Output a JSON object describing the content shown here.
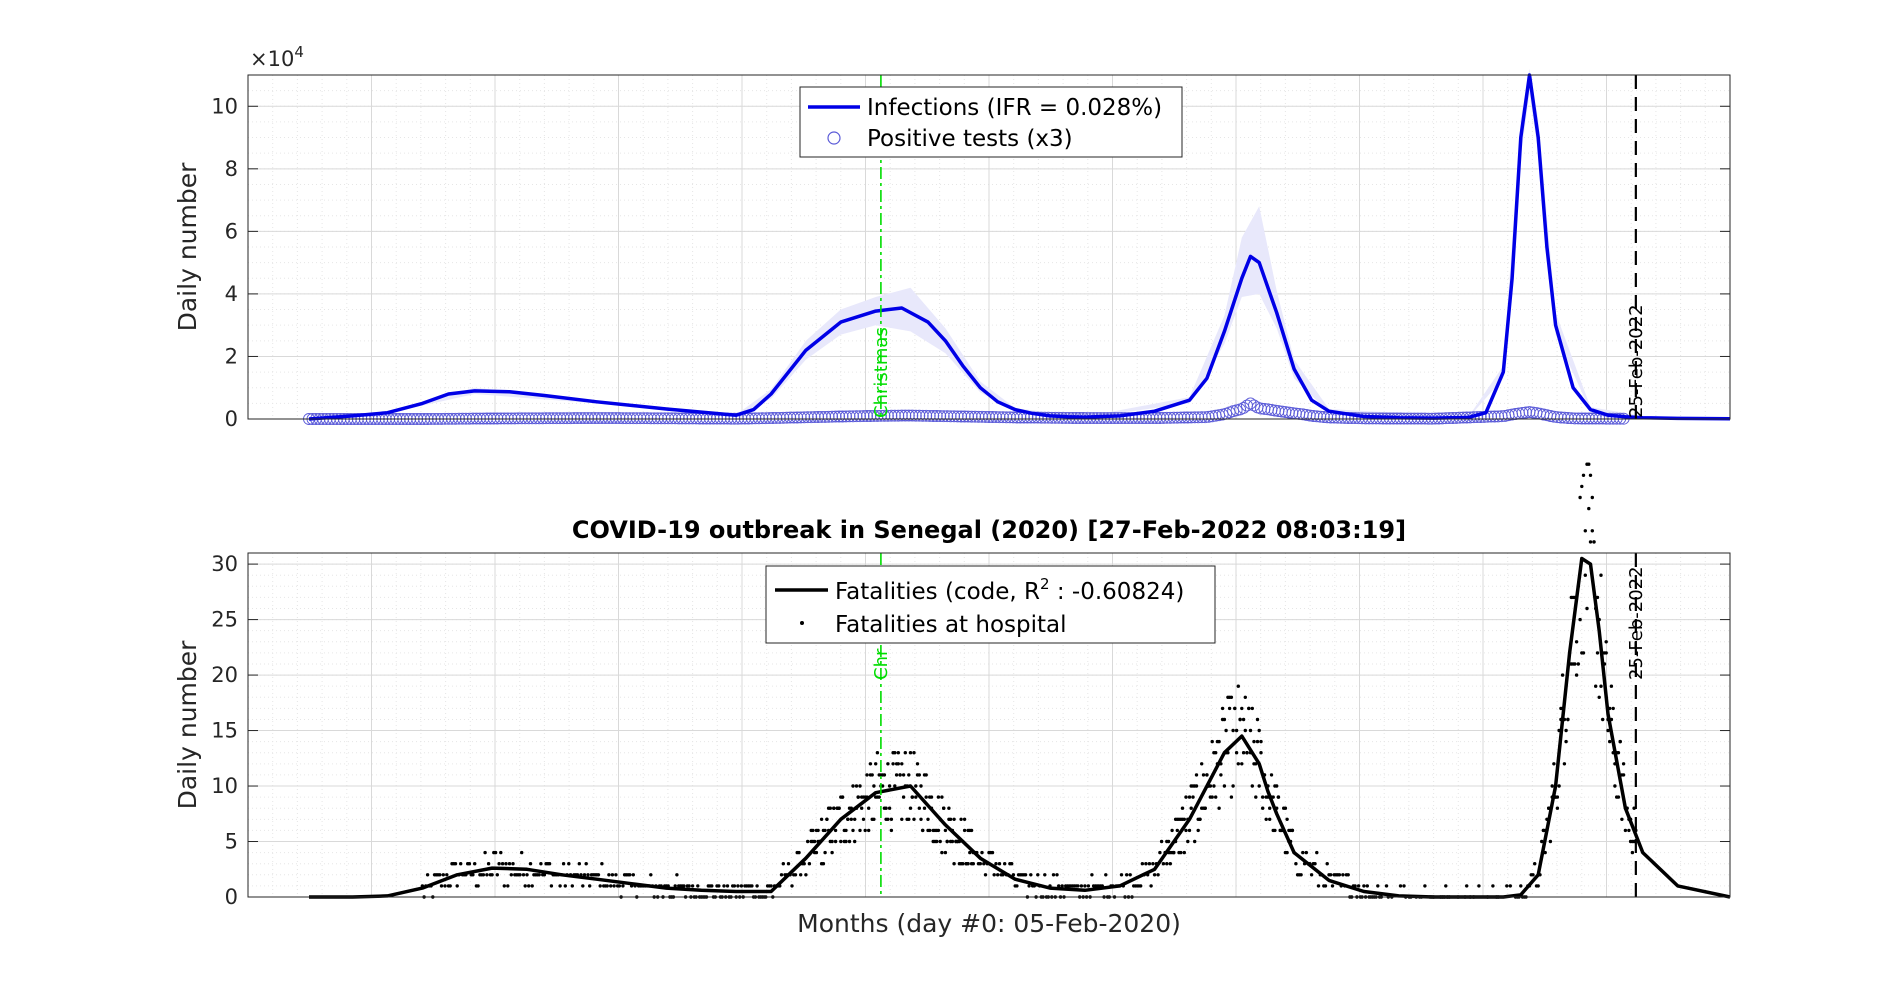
{
  "figure": {
    "title": "COVID-19 outbreak in Senegal (2020) [27-Feb-2022 08:03:19]",
    "xlabel": "Months (day #0: 05-Feb-2020)",
    "ylabel": "Daily number",
    "exponent_label": "×10",
    "exponent_power": "4",
    "christmas_label": "Christmas",
    "christmas_label_clipped": "Chr",
    "date_label": "25-Feb-2022"
  },
  "colors": {
    "infections": "#0000e6",
    "positive_tests": "#5a5ad8",
    "band": "#e8e8fb",
    "fatalities": "#000000",
    "christmas": "#00dd00",
    "grid": "#d9d9d9"
  },
  "chart_data": [
    {
      "type": "line",
      "x_units": "days since 05-Feb-2020",
      "xlim": [
        0,
        850
      ],
      "ylim": [
        0,
        110000
      ],
      "y_scale_note": "y axis in units of 10^4",
      "yticks": [
        0,
        20000,
        40000,
        60000,
        80000,
        100000
      ],
      "ytick_labels": [
        "0",
        "2",
        "4",
        "6",
        "8",
        "10"
      ],
      "grid": true,
      "legend_placement": "top-center",
      "series": [
        {
          "name": "Infections (IFR = 0.028%)",
          "style": "line",
          "x": [
            35,
            60,
            80,
            100,
            115,
            130,
            150,
            170,
            200,
            240,
            280,
            290,
            300,
            320,
            340,
            360,
            375,
            390,
            400,
            410,
            420,
            430,
            440,
            450,
            460,
            470,
            480,
            500,
            520,
            540,
            550,
            560,
            570,
            575,
            580,
            590,
            600,
            610,
            620,
            640,
            660,
            680,
            700,
            710,
            720,
            725,
            730,
            735,
            740,
            745,
            750,
            760,
            770,
            780,
            790,
            800,
            820,
            850
          ],
          "y": [
            0,
            1000,
            2000,
            5000,
            8000,
            9000,
            8700,
            7500,
            5500,
            3200,
            1200,
            3000,
            8000,
            22000,
            31000,
            34500,
            35500,
            31000,
            25000,
            17000,
            10000,
            5500,
            3000,
            1800,
            1000,
            700,
            600,
            1000,
            2500,
            6000,
            13000,
            28000,
            45000,
            52000,
            50000,
            34000,
            16000,
            6000,
            2500,
            800,
            400,
            300,
            500,
            2000,
            15000,
            45000,
            90000,
            110000,
            90000,
            55000,
            30000,
            10000,
            3000,
            1200,
            700,
            400,
            200,
            50
          ]
        },
        {
          "name": "Positive tests (x3)",
          "style": "circles",
          "x": [
            35,
            60,
            100,
            150,
            200,
            250,
            280,
            300,
            340,
            360,
            380,
            400,
            420,
            440,
            480,
            520,
            550,
            560,
            565,
            570,
            575,
            580,
            585,
            590,
            595,
            600,
            605,
            610,
            620,
            640,
            680,
            720,
            730,
            735,
            740,
            745,
            750,
            760,
            780,
            790
          ],
          "y": [
            0,
            0,
            0,
            200,
            300,
            200,
            100,
            300,
            800,
            1000,
            1100,
            900,
            700,
            500,
            300,
            300,
            600,
            1500,
            2500,
            3200,
            5000,
            3400,
            3100,
            2600,
            2200,
            1800,
            1500,
            1000,
            500,
            200,
            100,
            900,
            1900,
            2200,
            1800,
            1200,
            600,
            200,
            100,
            100
          ]
        }
      ],
      "uncertainty_band": {
        "x": [
          35,
          80,
          130,
          200,
          280,
          300,
          320,
          340,
          360,
          380,
          400,
          420,
          440,
          480,
          540,
          560,
          570,
          580,
          590,
          600,
          620,
          700,
          720,
          730,
          735,
          740,
          750,
          770,
          800,
          850
        ],
        "lower": [
          0,
          1800,
          8000,
          5000,
          1000,
          6500,
          19000,
          27000,
          30000,
          28000,
          21000,
          8500,
          2500,
          500,
          5000,
          24000,
          39000,
          40000,
          29000,
          13000,
          2000,
          400,
          13000,
          84000,
          104000,
          85000,
          27000,
          2500,
          600,
          40
        ],
        "upper": [
          0,
          2300,
          10000,
          6000,
          1400,
          9500,
          25000,
          35000,
          39000,
          42000,
          29000,
          12000,
          3500,
          700,
          7000,
          33000,
          58000,
          68000,
          41000,
          19000,
          3200,
          700,
          17000,
          96000,
          112000,
          96000,
          34000,
          3800,
          1000,
          70
        ]
      },
      "vlines": [
        {
          "x": 363,
          "label": "Christmas",
          "style": "dash-dot",
          "color": "christmas"
        },
        {
          "x": 796,
          "label": "25-Feb-2022",
          "style": "dashed",
          "color": "black"
        }
      ]
    },
    {
      "type": "line",
      "x_units": "days since 05-Feb-2020",
      "xlim": [
        0,
        850
      ],
      "ylim": [
        0,
        31
      ],
      "yticks": [
        0,
        5,
        10,
        15,
        20,
        25,
        30
      ],
      "ytick_labels": [
        "0",
        "5",
        "10",
        "15",
        "20",
        "25",
        "30"
      ],
      "grid": true,
      "legend_placement": "top-center",
      "series": [
        {
          "name": "Fatalities (code, R",
          "name_superscript": "2",
          "name_suffix": " : -0.60824)",
          "style": "line",
          "x": [
            35,
            60,
            80,
            100,
            120,
            140,
            160,
            180,
            200,
            220,
            240,
            260,
            280,
            300,
            320,
            340,
            360,
            380,
            400,
            420,
            440,
            460,
            480,
            500,
            520,
            540,
            560,
            570,
            580,
            585,
            590,
            600,
            620,
            640,
            660,
            680,
            700,
            720,
            730,
            740,
            750,
            758,
            765,
            770,
            775,
            780,
            790,
            800,
            820,
            850
          ],
          "y": [
            0,
            0,
            0.1,
            0.8,
            2.0,
            2.6,
            2.5,
            2.0,
            1.6,
            1.2,
            0.8,
            0.6,
            0.5,
            0.5,
            3.5,
            7.0,
            9.4,
            10.0,
            6.5,
            3.5,
            1.6,
            0.8,
            0.6,
            1.0,
            2.5,
            7.0,
            13.0,
            14.5,
            12.0,
            9.5,
            7.5,
            4.0,
            1.5,
            0.5,
            0.1,
            0,
            0,
            0,
            0.2,
            2.0,
            10.0,
            22.0,
            30.5,
            30.0,
            24.0,
            16.5,
            8.0,
            4.0,
            1.0,
            0
          ]
        },
        {
          "name": "Fatalities at hospital",
          "style": "dots"
        }
      ],
      "vlines": [
        {
          "x": 363,
          "label": "Christmas",
          "style": "dash-dot",
          "color": "christmas"
        },
        {
          "x": 796,
          "label": "25-Feb-2022",
          "style": "dashed",
          "color": "black"
        }
      ]
    }
  ]
}
